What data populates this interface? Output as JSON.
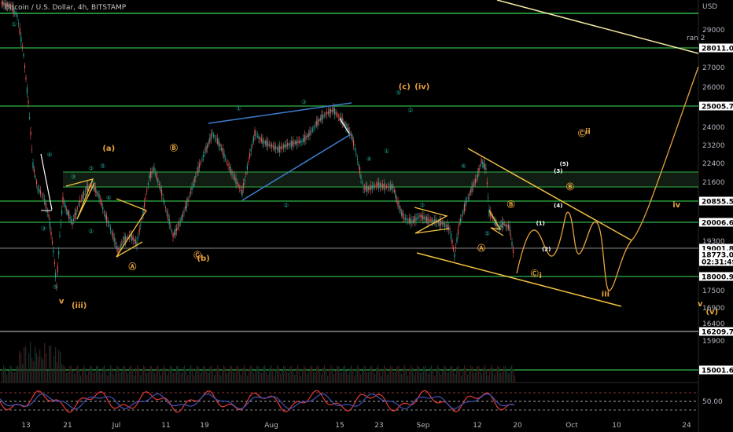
{
  "header": {
    "title": "Bitcoin / U.S. Dollar, 4h, BITSTAMP",
    "currency": "USD"
  },
  "chart_data": {
    "type": "candlestick",
    "symbol": "Bitcoin / U.S. Dollar",
    "interval": "4h",
    "exchange": "BITSTAMP",
    "y_axis_ticks": [
      29000,
      27000,
      26000,
      24000,
      23200,
      22400,
      21600,
      19300,
      17500,
      16900,
      16400,
      15900
    ],
    "x_axis_ticks": [
      "13",
      "21",
      "Jul",
      "11",
      "19",
      "Aug",
      "15",
      "23",
      "Sep",
      "12",
      "20",
      "Oct",
      "10",
      "24"
    ],
    "price_labels": [
      {
        "label": "28011.04",
        "price": 28011.04
      },
      {
        "label": "25005.75",
        "price": 25005.75
      },
      {
        "label": "20855.58",
        "price": 20855.58
      },
      {
        "label": "20006.67",
        "price": 20006.67
      },
      {
        "label": "19001.82",
        "price": 19001.82
      },
      {
        "label": "18773.00",
        "price": 18773.0,
        "sublabel": "02:31:49"
      },
      {
        "label": "18000.92",
        "price": 18000.92
      },
      {
        "label": "16209.76",
        "price": 16209.76
      },
      {
        "label": "15001.66",
        "price": 15001.66
      }
    ],
    "indicator": {
      "name": "RSI",
      "level_label": "50.00"
    },
    "wave_labels": [
      {
        "text": "①",
        "style": "teal",
        "x_date": "2022-06-11",
        "price": 29200
      },
      {
        "text": "④",
        "style": "teal",
        "x_date": "2022-06-17",
        "price": 22700
      },
      {
        "text": "③",
        "style": "teal",
        "x_date": "2022-06-16",
        "price": 19700
      },
      {
        "text": "⑤",
        "style": "teal",
        "x_date": "2022-06-18",
        "price": 17550
      },
      {
        "text": "v",
        "style": "orange",
        "x_date": "2022-06-19",
        "price": 17050
      },
      {
        "text": "(iii)",
        "style": "orange",
        "x_date": "2022-06-22",
        "price": 16900
      },
      {
        "text": "③",
        "style": "teal",
        "x_date": "2022-06-21",
        "price": 21750
      },
      {
        "text": "①",
        "style": "teal",
        "x_date": "2022-06-20",
        "price": 20300
      },
      {
        "text": "②",
        "style": "teal",
        "x_date": "2022-06-24",
        "price": 19600
      },
      {
        "text": "③",
        "style": "teal",
        "x_date": "2022-06-24",
        "price": 22100
      },
      {
        "text": "⑤",
        "style": "teal",
        "x_date": "2022-06-26",
        "price": 22200
      },
      {
        "text": "④",
        "style": "teal",
        "x_date": "2022-06-27",
        "price": 20900
      },
      {
        "text": "(a)",
        "style": "orange",
        "x_date": "2022-06-27",
        "price": 22950
      },
      {
        "text": "Ⓐ",
        "style": "orange",
        "x_date": "2022-07-01",
        "price": 18250
      },
      {
        "text": "Ⓑ",
        "style": "orange",
        "x_date": "2022-07-08",
        "price": 22950
      },
      {
        "text": "Ⓒ",
        "style": "orange",
        "x_date": "2022-07-12",
        "price": 18650
      },
      {
        "text": "(b)",
        "style": "orange",
        "x_date": "2022-07-13",
        "price": 18550
      },
      {
        "text": "①",
        "style": "teal",
        "x_date": "2022-07-19",
        "price": 24800
      },
      {
        "text": "②",
        "style": "teal",
        "x_date": "2022-07-27",
        "price": 20600
      },
      {
        "text": "③",
        "style": "teal",
        "x_date": "2022-07-30",
        "price": 25100
      },
      {
        "text": "④",
        "style": "teal",
        "x_date": "2022-08-10",
        "price": 22500
      },
      {
        "text": "①",
        "style": "teal",
        "x_date": "2022-08-13",
        "price": 22850
      },
      {
        "text": "⑤",
        "style": "teal",
        "x_date": "2022-08-15",
        "price": 25600
      },
      {
        "text": "(c)",
        "style": "orange",
        "x_date": "2022-08-16",
        "price": 25900
      },
      {
        "text": "(iv)",
        "style": "orange",
        "x_date": "2022-08-19",
        "price": 25900
      },
      {
        "text": "②",
        "style": "teal",
        "x_date": "2022-08-17",
        "price": 24700
      },
      {
        "text": "③",
        "style": "teal",
        "x_date": "2022-08-19",
        "price": 20600
      },
      {
        "text": "④",
        "style": "teal",
        "x_date": "2022-08-26",
        "price": 22200
      },
      {
        "text": "⑤",
        "style": "teal",
        "x_date": "2022-08-30",
        "price": 19500
      },
      {
        "text": "Ⓐ",
        "style": "orange",
        "x_date": "2022-08-29",
        "price": 18900
      },
      {
        "text": "Ⓑ",
        "style": "orange",
        "x_date": "2022-09-03",
        "price": 20600
      },
      {
        "text": "Ⓒ",
        "style": "orange",
        "x_date": "2022-09-07",
        "price": 18000
      },
      {
        "text": "i",
        "style": "orange",
        "x_date": "2022-09-08",
        "price": 17950
      },
      {
        "text": "(1)",
        "style": "white",
        "x_date": "2022-09-08",
        "price": 19900
      },
      {
        "text": "(2)",
        "style": "white",
        "x_date": "2022-09-09",
        "price": 18900
      },
      {
        "text": "(4)",
        "style": "white",
        "x_date": "2022-09-11",
        "price": 20600
      },
      {
        "text": "(3)",
        "style": "white",
        "x_date": "2022-09-11",
        "price": 22000
      },
      {
        "text": "(5)",
        "style": "white",
        "x_date": "2022-09-12",
        "price": 22300
      },
      {
        "text": "Ⓑ",
        "style": "orange",
        "x_date": "2022-09-13",
        "price": 21300
      },
      {
        "text": "Ⓒ",
        "style": "orange",
        "x_date": "2022-09-15",
        "price": 23600
      },
      {
        "text": "ii",
        "style": "orange",
        "x_date": "2022-09-16",
        "price": 23700
      },
      {
        "text": "iii",
        "style": "orange",
        "x_date": "2022-09-19",
        "price": 17300
      },
      {
        "text": "iv",
        "style": "orange",
        "x_date": "2022-10-01",
        "price": 20600
      },
      {
        "text": "v",
        "style": "orange",
        "x_date": "2022-10-05",
        "price": 16950
      },
      {
        "text": "(v)",
        "style": "orange",
        "x_date": "2022-10-07",
        "price": 16700
      },
      {
        "text": "ⓥ",
        "style": "teal",
        "x_date": "2022-10-12",
        "price": 16500
      },
      {
        "text": "ⓘⓥ",
        "style": "white",
        "x_date": "2022-10-13",
        "price": 16200
      }
    ],
    "grid": false
  }
}
